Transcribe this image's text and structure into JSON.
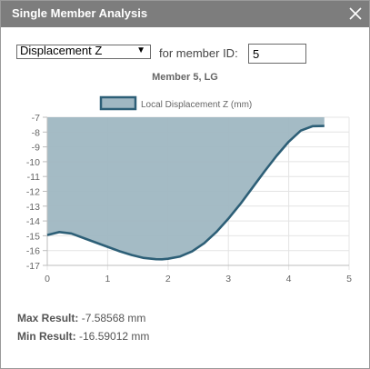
{
  "window": {
    "title": "Single Member Analysis"
  },
  "controls": {
    "result_type": "Displacement Z",
    "member_label": "for member ID:",
    "member_id": "5"
  },
  "chart_data": {
    "type": "area",
    "title": "Member 5, LG",
    "legend": "Local Displacement Z (mm)",
    "legend_position": "top",
    "grid": true,
    "colors": {
      "fill": "#9fb7c2",
      "line": "#2d5f77"
    },
    "xlim": [
      0,
      5
    ],
    "ylim": [
      -17,
      -7
    ],
    "x_ticks": [
      "0",
      "1",
      "2",
      "3",
      "4",
      "5"
    ],
    "y_ticks": [
      "-7",
      "-8",
      "-9",
      "-10",
      "-11",
      "-12",
      "-13",
      "-14",
      "-15",
      "-16",
      "-17"
    ],
    "x": [
      0,
      0.2,
      0.4,
      0.6,
      0.8,
      1.0,
      1.2,
      1.4,
      1.6,
      1.8,
      1.9,
      2.0,
      2.2,
      2.4,
      2.6,
      2.8,
      3.0,
      3.2,
      3.4,
      3.6,
      3.8,
      4.0,
      4.2,
      4.4,
      4.59
    ],
    "y": [
      -14.95,
      -14.75,
      -14.85,
      -15.15,
      -15.45,
      -15.75,
      -16.05,
      -16.3,
      -16.5,
      -16.58,
      -16.59,
      -16.55,
      -16.4,
      -16.05,
      -15.5,
      -14.75,
      -13.85,
      -12.85,
      -11.75,
      -10.65,
      -9.6,
      -8.65,
      -7.9,
      -7.6,
      -7.58568
    ]
  },
  "results": {
    "max_label": "Max Result:",
    "max_value": "-7.58568 mm",
    "min_label": "Min Result:",
    "min_value": "-16.59012 mm"
  }
}
